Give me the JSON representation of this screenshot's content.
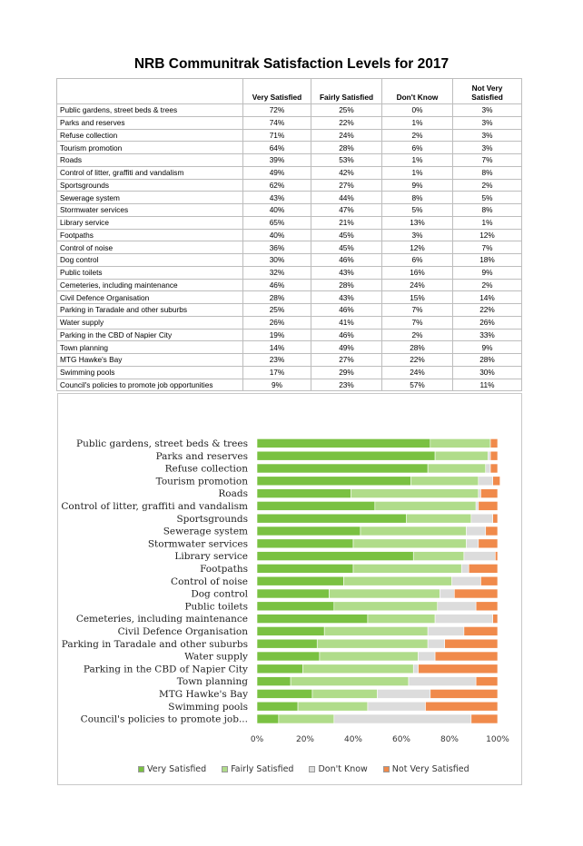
{
  "title": "NRB Communitrak Satisfaction Levels for 2017",
  "table": {
    "headers": [
      "",
      "Very Satisfied",
      "Fairly Satisfied",
      "Don't Know",
      "Not Very Satisfied"
    ],
    "rows": [
      [
        "Public gardens, street beds & trees",
        "72%",
        "25%",
        "0%",
        "3%"
      ],
      [
        "Parks and reserves",
        "74%",
        "22%",
        "1%",
        "3%"
      ],
      [
        "Refuse collection",
        "71%",
        "24%",
        "2%",
        "3%"
      ],
      [
        "Tourism promotion",
        "64%",
        "28%",
        "6%",
        "3%"
      ],
      [
        "Roads",
        "39%",
        "53%",
        "1%",
        "7%"
      ],
      [
        "Control of litter, graffiti and vandalism",
        "49%",
        "42%",
        "1%",
        "8%"
      ],
      [
        "Sportsgrounds",
        "62%",
        "27%",
        "9%",
        "2%"
      ],
      [
        "Sewerage system",
        "43%",
        "44%",
        "8%",
        "5%"
      ],
      [
        "Stormwater services",
        "40%",
        "47%",
        "5%",
        "8%"
      ],
      [
        "Library service",
        "65%",
        "21%",
        "13%",
        "1%"
      ],
      [
        "Footpaths",
        "40%",
        "45%",
        "3%",
        "12%"
      ],
      [
        "Control of noise",
        "36%",
        "45%",
        "12%",
        "7%"
      ],
      [
        "Dog control",
        "30%",
        "46%",
        "6%",
        "18%"
      ],
      [
        "Public toilets",
        "32%",
        "43%",
        "16%",
        "9%"
      ],
      [
        "Cemeteries, including maintenance",
        "46%",
        "28%",
        "24%",
        "2%"
      ],
      [
        "Civil Defence Organisation",
        "28%",
        "43%",
        "15%",
        "14%"
      ],
      [
        "Parking in Taradale and other suburbs",
        "25%",
        "46%",
        "7%",
        "22%"
      ],
      [
        "Water supply",
        "26%",
        "41%",
        "7%",
        "26%"
      ],
      [
        "Parking in the CBD of Napier City",
        "19%",
        "46%",
        "2%",
        "33%"
      ],
      [
        "Town planning",
        "14%",
        "49%",
        "28%",
        "9%"
      ],
      [
        "MTG Hawke's Bay",
        "23%",
        "27%",
        "22%",
        "28%"
      ],
      [
        "Swimming pools",
        "17%",
        "29%",
        "24%",
        "30%"
      ],
      [
        "Council's policies to promote job opportunities",
        "9%",
        "23%",
        "57%",
        "11%"
      ]
    ]
  },
  "chart_data": {
    "type": "bar",
    "stacked": true,
    "normalized": true,
    "orientation": "horizontal",
    "categories": [
      "Public gardens, street beds & trees",
      "Parks and reserves",
      "Refuse collection",
      "Tourism promotion",
      "Roads",
      "Control of litter, graffiti and vandalism",
      "Sportsgrounds",
      "Sewerage system",
      "Stormwater services",
      "Library service",
      "Footpaths",
      "Control of noise",
      "Dog control",
      "Public toilets",
      "Cemeteries, including maintenance",
      "Civil Defence Organisation",
      "Parking in Taradale and other suburbs",
      "Water supply",
      "Parking in the CBD of Napier City",
      "Town planning",
      "MTG Hawke's Bay",
      "Swimming pools",
      "Council's policies to promote job..."
    ],
    "series": [
      {
        "name": "Very Satisfied",
        "color": "#7ac142",
        "values": [
          72,
          74,
          71,
          64,
          39,
          49,
          62,
          43,
          40,
          65,
          40,
          36,
          30,
          32,
          46,
          28,
          25,
          26,
          19,
          14,
          23,
          17,
          9
        ]
      },
      {
        "name": "Fairly Satisfied",
        "color": "#b0dc8a",
        "values": [
          25,
          22,
          24,
          28,
          53,
          42,
          27,
          44,
          47,
          21,
          45,
          45,
          46,
          43,
          28,
          43,
          46,
          41,
          46,
          49,
          27,
          29,
          23
        ]
      },
      {
        "name": "Don't Know",
        "color": "#dcdcdc",
        "values": [
          0,
          1,
          2,
          6,
          1,
          1,
          9,
          8,
          5,
          13,
          3,
          12,
          6,
          16,
          24,
          15,
          7,
          7,
          2,
          28,
          22,
          24,
          57
        ]
      },
      {
        "name": "Not Very Satisfied",
        "color": "#f08a4b",
        "values": [
          3,
          3,
          3,
          3,
          7,
          8,
          2,
          5,
          8,
          1,
          12,
          7,
          18,
          9,
          2,
          14,
          22,
          26,
          33,
          9,
          28,
          30,
          11
        ]
      }
    ],
    "xticks": [
      "0%",
      "20%",
      "40%",
      "60%",
      "80%",
      "100%"
    ],
    "xlim": [
      0,
      100
    ],
    "legend_position": "bottom",
    "grid": false
  }
}
